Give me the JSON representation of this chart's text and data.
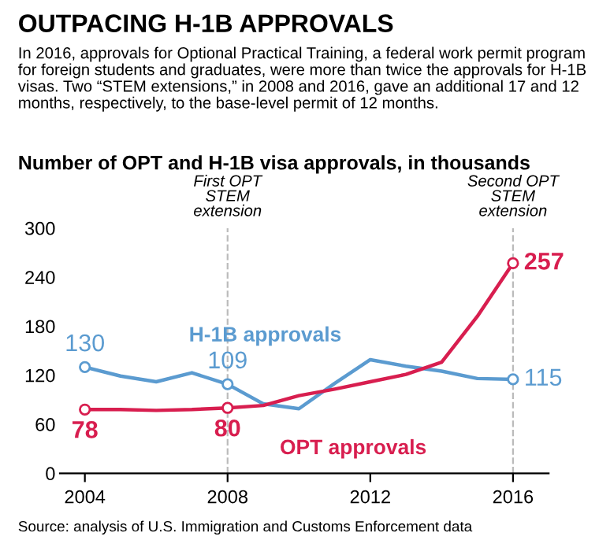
{
  "chart_data": {
    "type": "line",
    "title": "OUTPACING H-1B APPROVALS",
    "subtitle": "In 2016, approvals for Optional Practical Training, a federal work permit program for foreign students and graduates, were more than twice the approvals for H-1B visas. Two “STEM extensions,” in 2008 and 2016, gave an additional 17 and 12 months, respectively, to the base-level permit of 12 months.",
    "ylabel": "Number of OPT and H-1B visa approvals, in thousands",
    "x": [
      2004,
      2005,
      2006,
      2007,
      2008,
      2009,
      2010,
      2011,
      2012,
      2013,
      2014,
      2015,
      2016
    ],
    "series": [
      {
        "name": "H-1B approvals",
        "color": "#5b9bd0",
        "values": [
          130,
          119,
          112,
          123,
          109,
          85,
          79,
          110,
          139,
          131,
          125,
          116,
          115
        ],
        "value_labels": [
          "130",
          null,
          null,
          null,
          "109",
          null,
          null,
          null,
          null,
          null,
          null,
          null,
          "115"
        ]
      },
      {
        "name": "OPT approvals",
        "color": "#d81e4f",
        "values": [
          78,
          78,
          77,
          78,
          80,
          83,
          95,
          103,
          112,
          121,
          136,
          192,
          257
        ],
        "value_labels": [
          "78",
          null,
          null,
          null,
          "80",
          null,
          null,
          null,
          null,
          null,
          null,
          null,
          "257"
        ]
      }
    ],
    "xlim": [
      2003.3,
      2017
    ],
    "xticks": [
      2004,
      2008,
      2012,
      2016
    ],
    "ylim": [
      0,
      300
    ],
    "yticks": [
      0,
      60,
      120,
      180,
      240,
      300
    ],
    "ref_lines": [
      {
        "axis": "x",
        "value": 2008,
        "label": "First OPT STEM extension",
        "color": "#bbbbbb",
        "line_style": "dashed"
      },
      {
        "axis": "x",
        "value": 2016,
        "label": "Second OPT STEM extension",
        "color": "#bbbbbb",
        "line_style": "dashed"
      }
    ],
    "grid": false,
    "legend": false,
    "line_style": "solid",
    "annotations": [
      "Source: analysis of U.S. Immigration and Customs Enforcement data"
    ]
  }
}
